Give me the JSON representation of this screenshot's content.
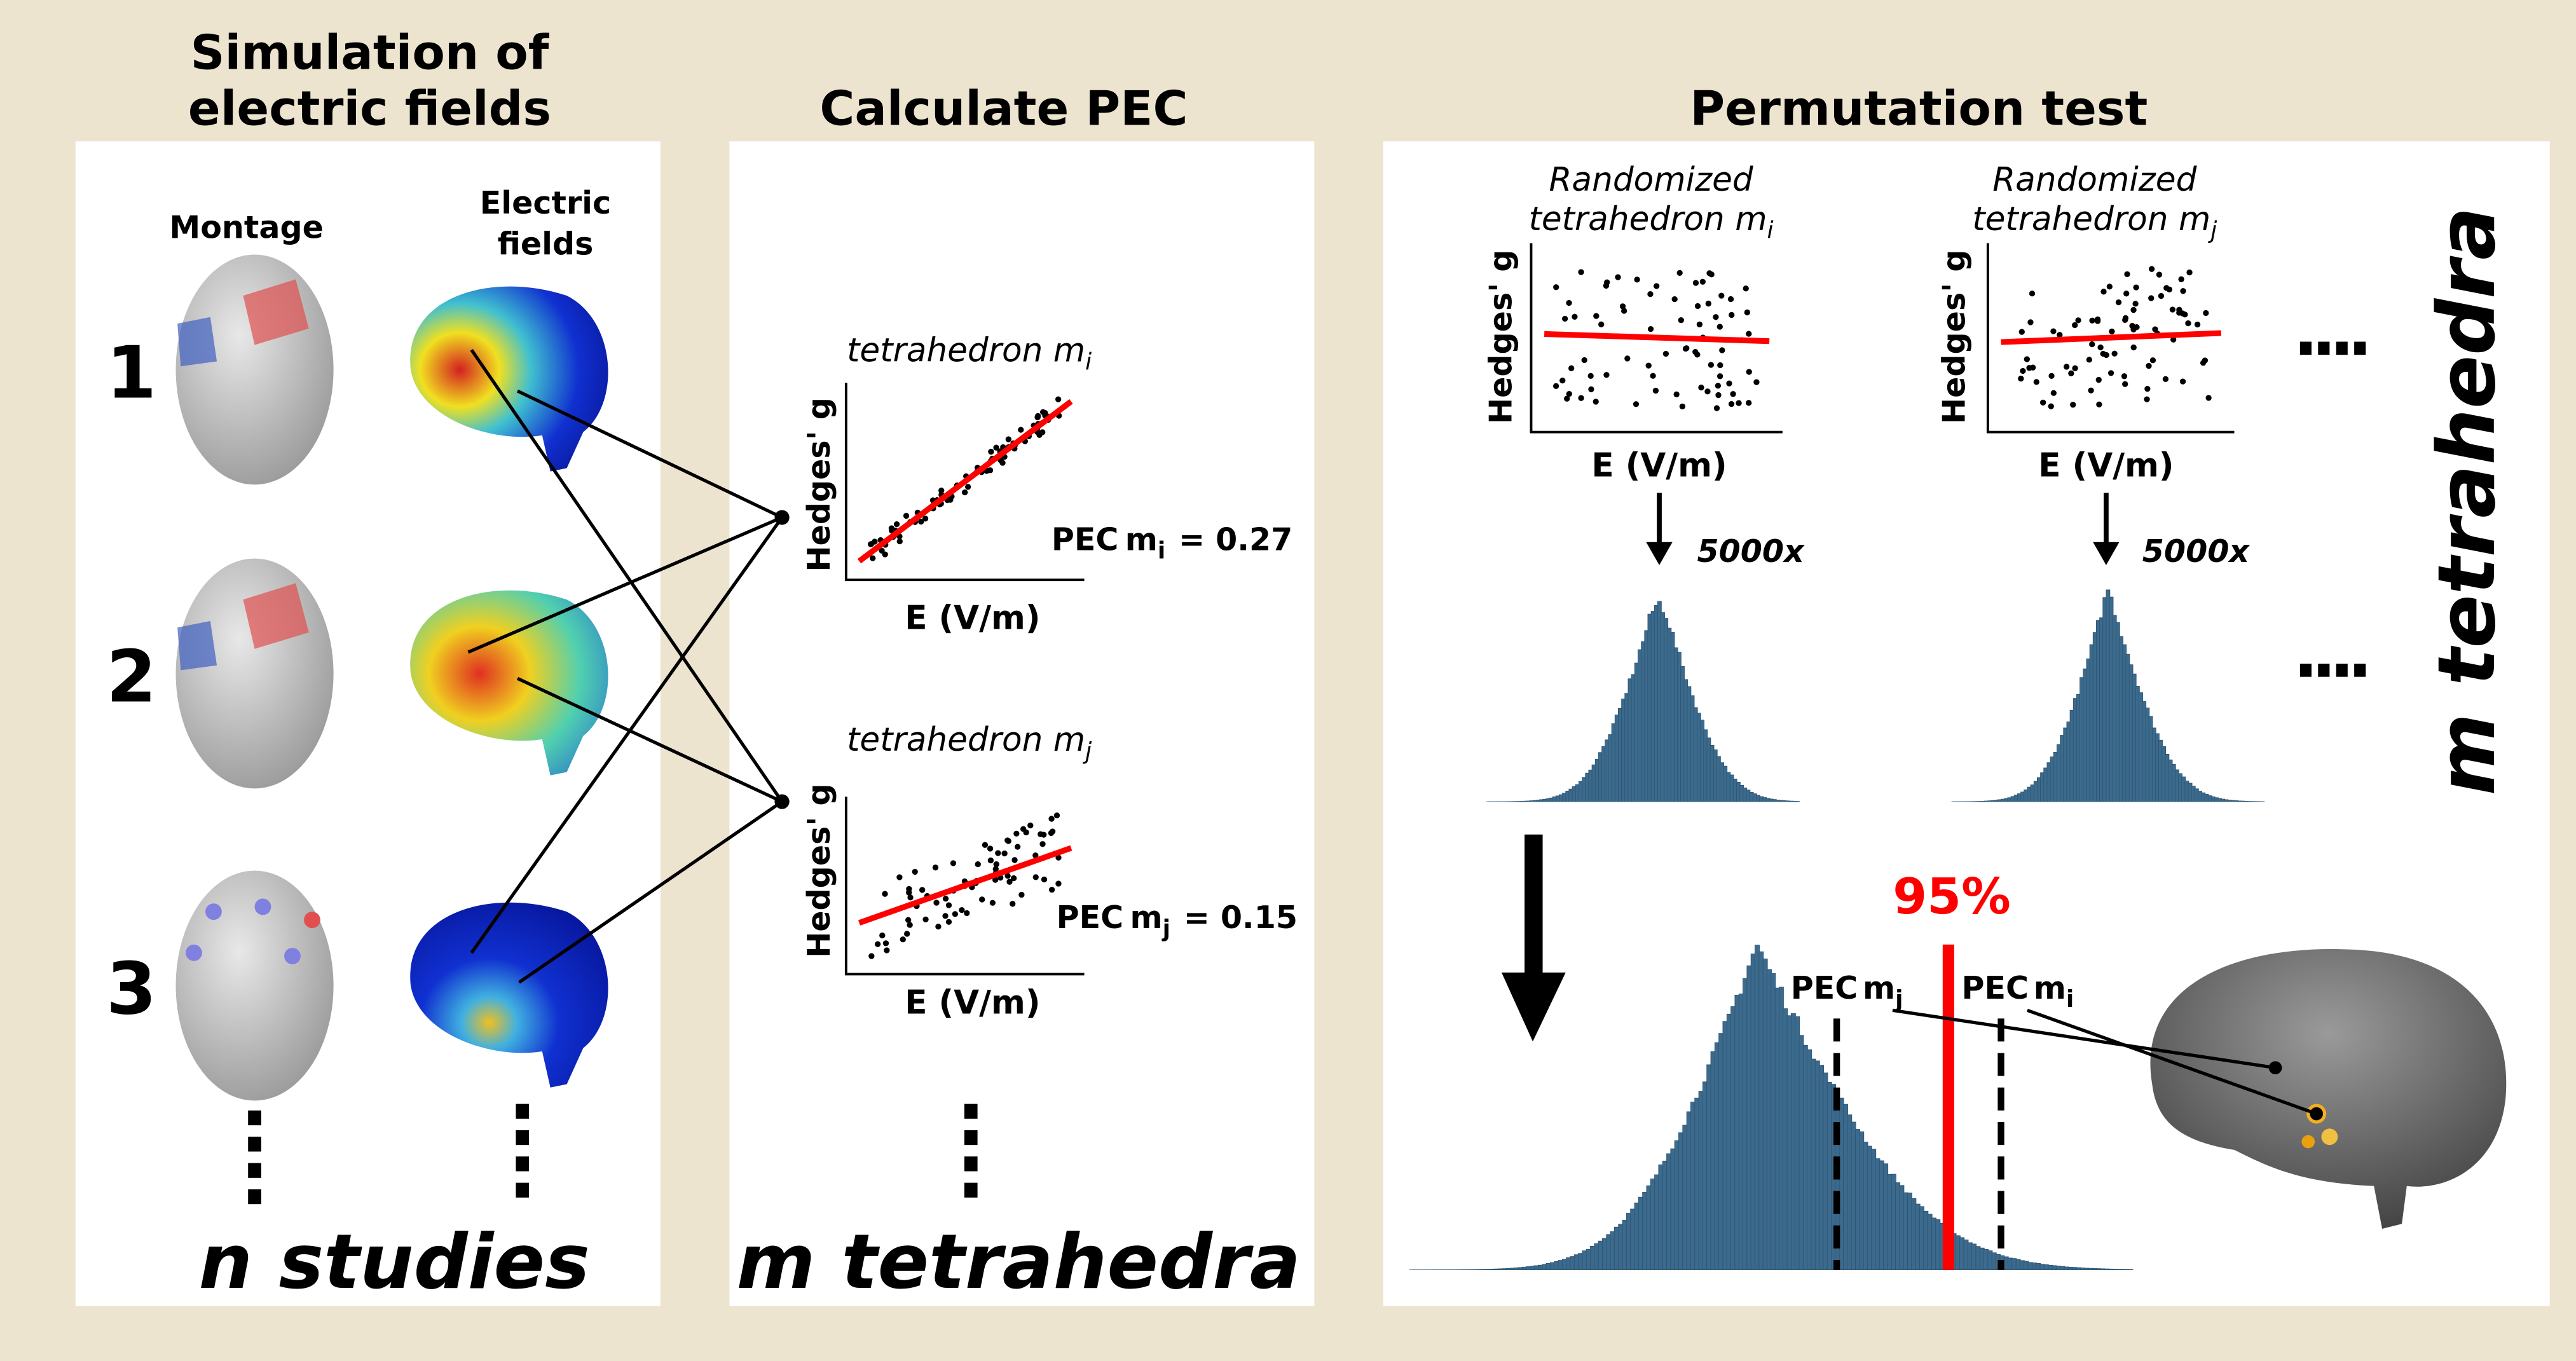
{
  "panel1": {
    "title_lines": [
      "Simulation of",
      "electric fields"
    ],
    "montage_header": "Montage",
    "fields_header_lines": [
      "Electric",
      "fields"
    ],
    "rows": [
      "1",
      "2",
      "3"
    ],
    "footer": "n studies"
  },
  "panel2": {
    "title": "Calculate PEC",
    "plots": [
      {
        "title": "tetrahedron m",
        "title_sub": "i",
        "y_label": "Hedges' g",
        "x_label": "E (V/m)",
        "pec": {
          "label": "PEC",
          "m": "m",
          "sub": "i",
          "value": "= 0.27"
        }
      },
      {
        "title": "tetrahedron m",
        "title_sub": "j",
        "y_label": "Hedges' g",
        "x_label": "E (V/m)",
        "pec": {
          "label": "PEC",
          "m": "m",
          "sub": "j",
          "value": "= 0.15"
        }
      }
    ],
    "footer": "m tetrahedra"
  },
  "panel3": {
    "title": "Permutation test",
    "plots": [
      {
        "title_line1": "Randomized",
        "title_line2": "tetrahedron m",
        "title_sub": "i",
        "y_label": "Hedges' g",
        "x_label": "E (V/m)",
        "iterations": "5000x"
      },
      {
        "title_line1": "Randomized",
        "title_line2": "tetrahedron m",
        "title_sub": "j",
        "y_label": "Hedges' g",
        "x_label": "E (V/m)",
        "iterations": "5000x"
      }
    ],
    "side_label": "m tetrahedra",
    "threshold": "95%",
    "markers": [
      {
        "label": "PEC",
        "m": "m",
        "sub": "j"
      },
      {
        "label": "PEC",
        "m": "m",
        "sub": "i"
      }
    ]
  }
}
